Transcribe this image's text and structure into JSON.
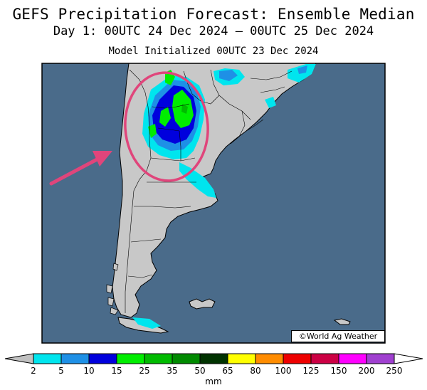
{
  "header": {
    "title": "GEFS Precipitation Forecast: Ensemble Median",
    "period": "Day 1: 00UTC 24 Dec 2024 — 00UTC 25 Dec 2024",
    "init": "Model Initialized 00UTC 23 Dec 2024"
  },
  "map": {
    "credit": "©World Ag Weather",
    "region": "Southern South America (Argentina, Chile, Uruguay, southern Brazil)",
    "ocean_color": "#4a6b8a",
    "land_color": "#c8c8c8",
    "highlight_circle_color": "#e0457b",
    "arrow_color": "#e0457b",
    "highlight_area": "Central Argentina (Cordoba / Santa Fe / Buenos Aires)"
  },
  "legend": {
    "unit": "mm",
    "ticks": [
      "2",
      "5",
      "10",
      "15",
      "25",
      "35",
      "50",
      "65",
      "80",
      "100",
      "125",
      "150",
      "200",
      "250"
    ],
    "colors": [
      "#00e5ee",
      "#1e90e6",
      "#0000dd",
      "#00ee00",
      "#00bb00",
      "#008a00",
      "#003300",
      "#ffff00",
      "#ff8c00",
      "#ee0000",
      "#cc0044",
      "#ff00ff",
      "#a040d0"
    ]
  }
}
